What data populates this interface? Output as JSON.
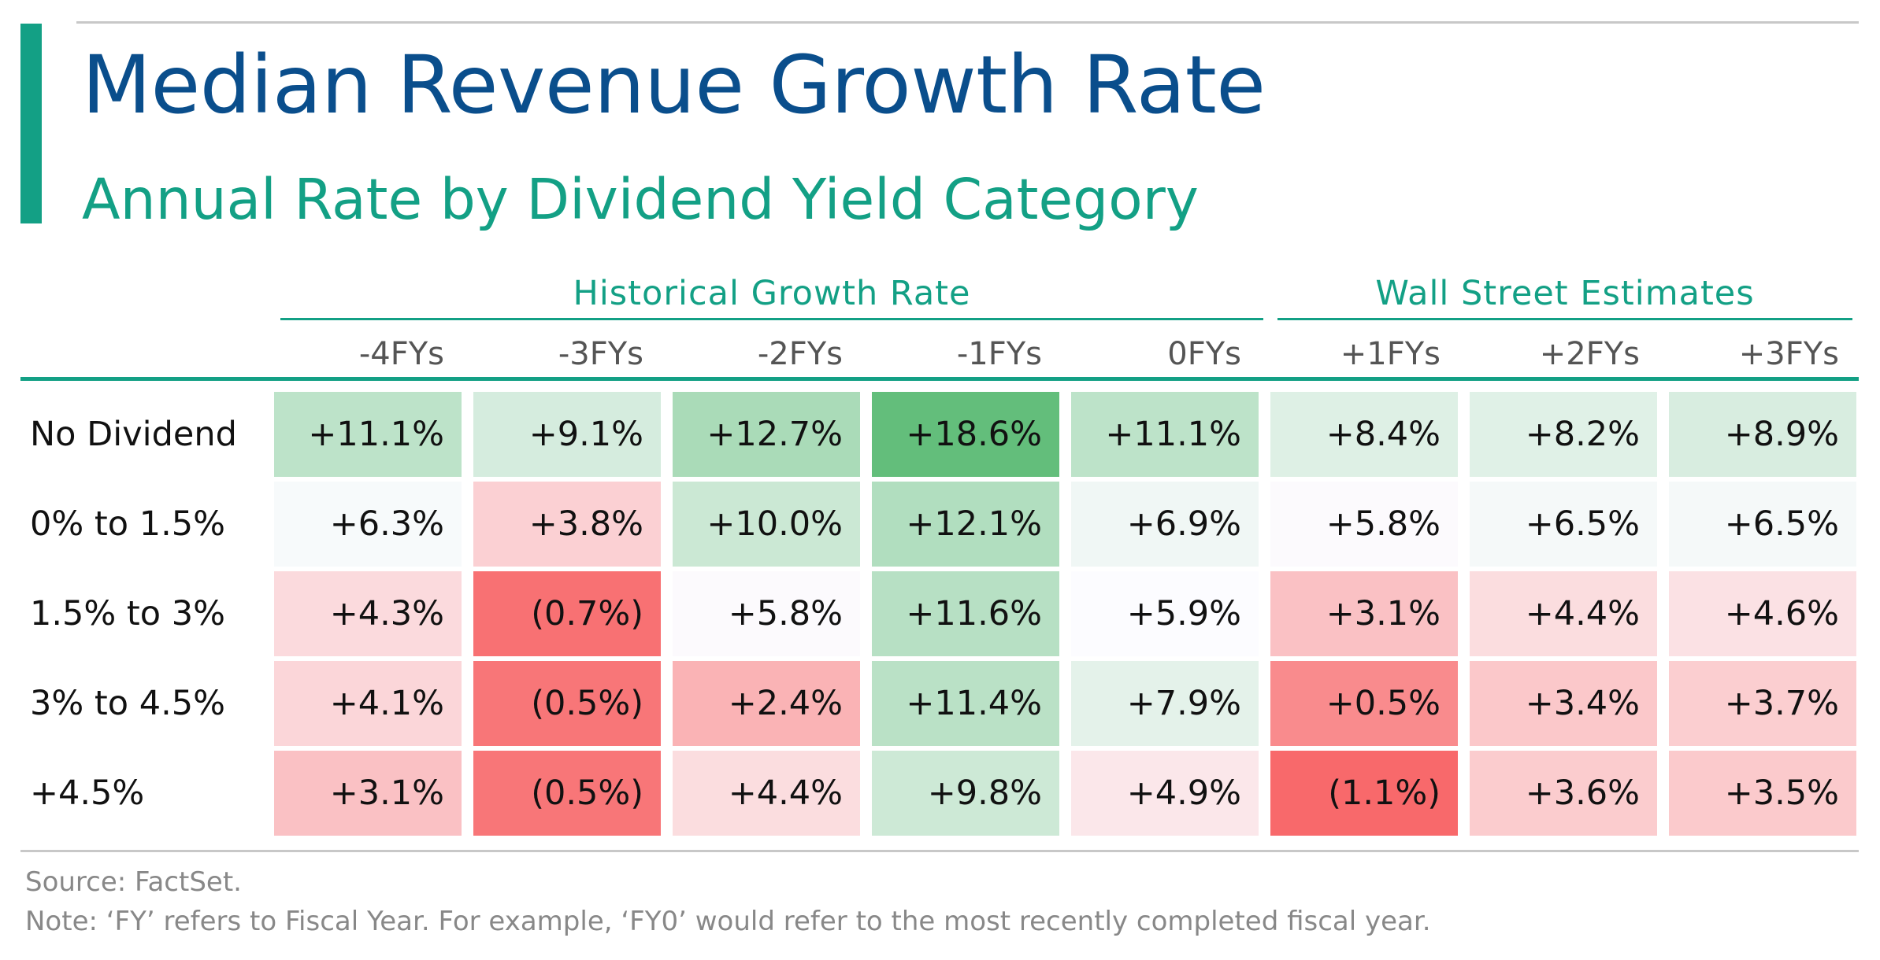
{
  "colors": {
    "title": "#0a4e8c",
    "accent": "#13a085",
    "positive_max": "#63be7b",
    "negative_max": "#f8696b",
    "neutral": "#fcfcff"
  },
  "chart_data": {
    "type": "table",
    "title": "Median Revenue Growth Rate",
    "subtitle": "Annual Rate by Dividend Yield Category",
    "column_groups": [
      {
        "label": "Historical Growth Rate",
        "columns": [
          "-4FYs",
          "-3FYs",
          "-2FYs",
          "-1FYs",
          "0FYs"
        ]
      },
      {
        "label": "Wall Street Estimates",
        "columns": [
          "+1FYs",
          "+2FYs",
          "+3FYs"
        ]
      }
    ],
    "columns": [
      "-4FYs",
      "-3FYs",
      "-2FYs",
      "-1FYs",
      "0FYs",
      "+1FYs",
      "+2FYs",
      "+3FYs"
    ],
    "rows": [
      {
        "label": "No Dividend",
        "values": [
          11.1,
          9.1,
          12.7,
          18.6,
          11.1,
          8.4,
          8.2,
          8.9
        ],
        "display": [
          "+11.1%",
          "+9.1%",
          "+12.7%",
          "+18.6%",
          "+11.1%",
          "+8.4%",
          "+8.2%",
          "+8.9%"
        ]
      },
      {
        "label": "0% to 1.5%",
        "values": [
          6.3,
          3.8,
          10.0,
          12.1,
          6.9,
          5.8,
          6.5,
          6.5
        ],
        "display": [
          "+6.3%",
          "+3.8%",
          "+10.0%",
          "+12.1%",
          "+6.9%",
          "+5.8%",
          "+6.5%",
          "+6.5%"
        ]
      },
      {
        "label": "1.5% to 3%",
        "values": [
          4.3,
          -0.7,
          5.8,
          11.6,
          5.9,
          3.1,
          4.4,
          4.6
        ],
        "display": [
          "+4.3%",
          "(0.7%)",
          "+5.8%",
          "+11.6%",
          "+5.9%",
          "+3.1%",
          "+4.4%",
          "+4.6%"
        ]
      },
      {
        "label": "3% to 4.5%",
        "values": [
          4.1,
          -0.5,
          2.4,
          11.4,
          7.9,
          0.5,
          3.4,
          3.7
        ],
        "display": [
          "+4.1%",
          "(0.5%)",
          "+2.4%",
          "+11.4%",
          "+7.9%",
          "+0.5%",
          "+3.4%",
          "+3.7%"
        ]
      },
      {
        "label": "+4.5%",
        "values": [
          3.1,
          -0.5,
          4.4,
          9.8,
          4.9,
          -1.1,
          3.6,
          3.5
        ],
        "display": [
          "+3.1%",
          "(0.5%)",
          "+4.4%",
          "+9.8%",
          "+4.9%",
          "(1.1%)",
          "+3.6%",
          "+3.5%"
        ]
      }
    ],
    "color_scale": {
      "min": -1.1,
      "mid": 5.9,
      "max": 18.6
    }
  },
  "footer": {
    "source": "Source: FactSet.",
    "note": "Note: ‘FY’ refers to Fiscal Year. For example, ‘FY0’ would refer to the most recently completed fiscal year."
  }
}
